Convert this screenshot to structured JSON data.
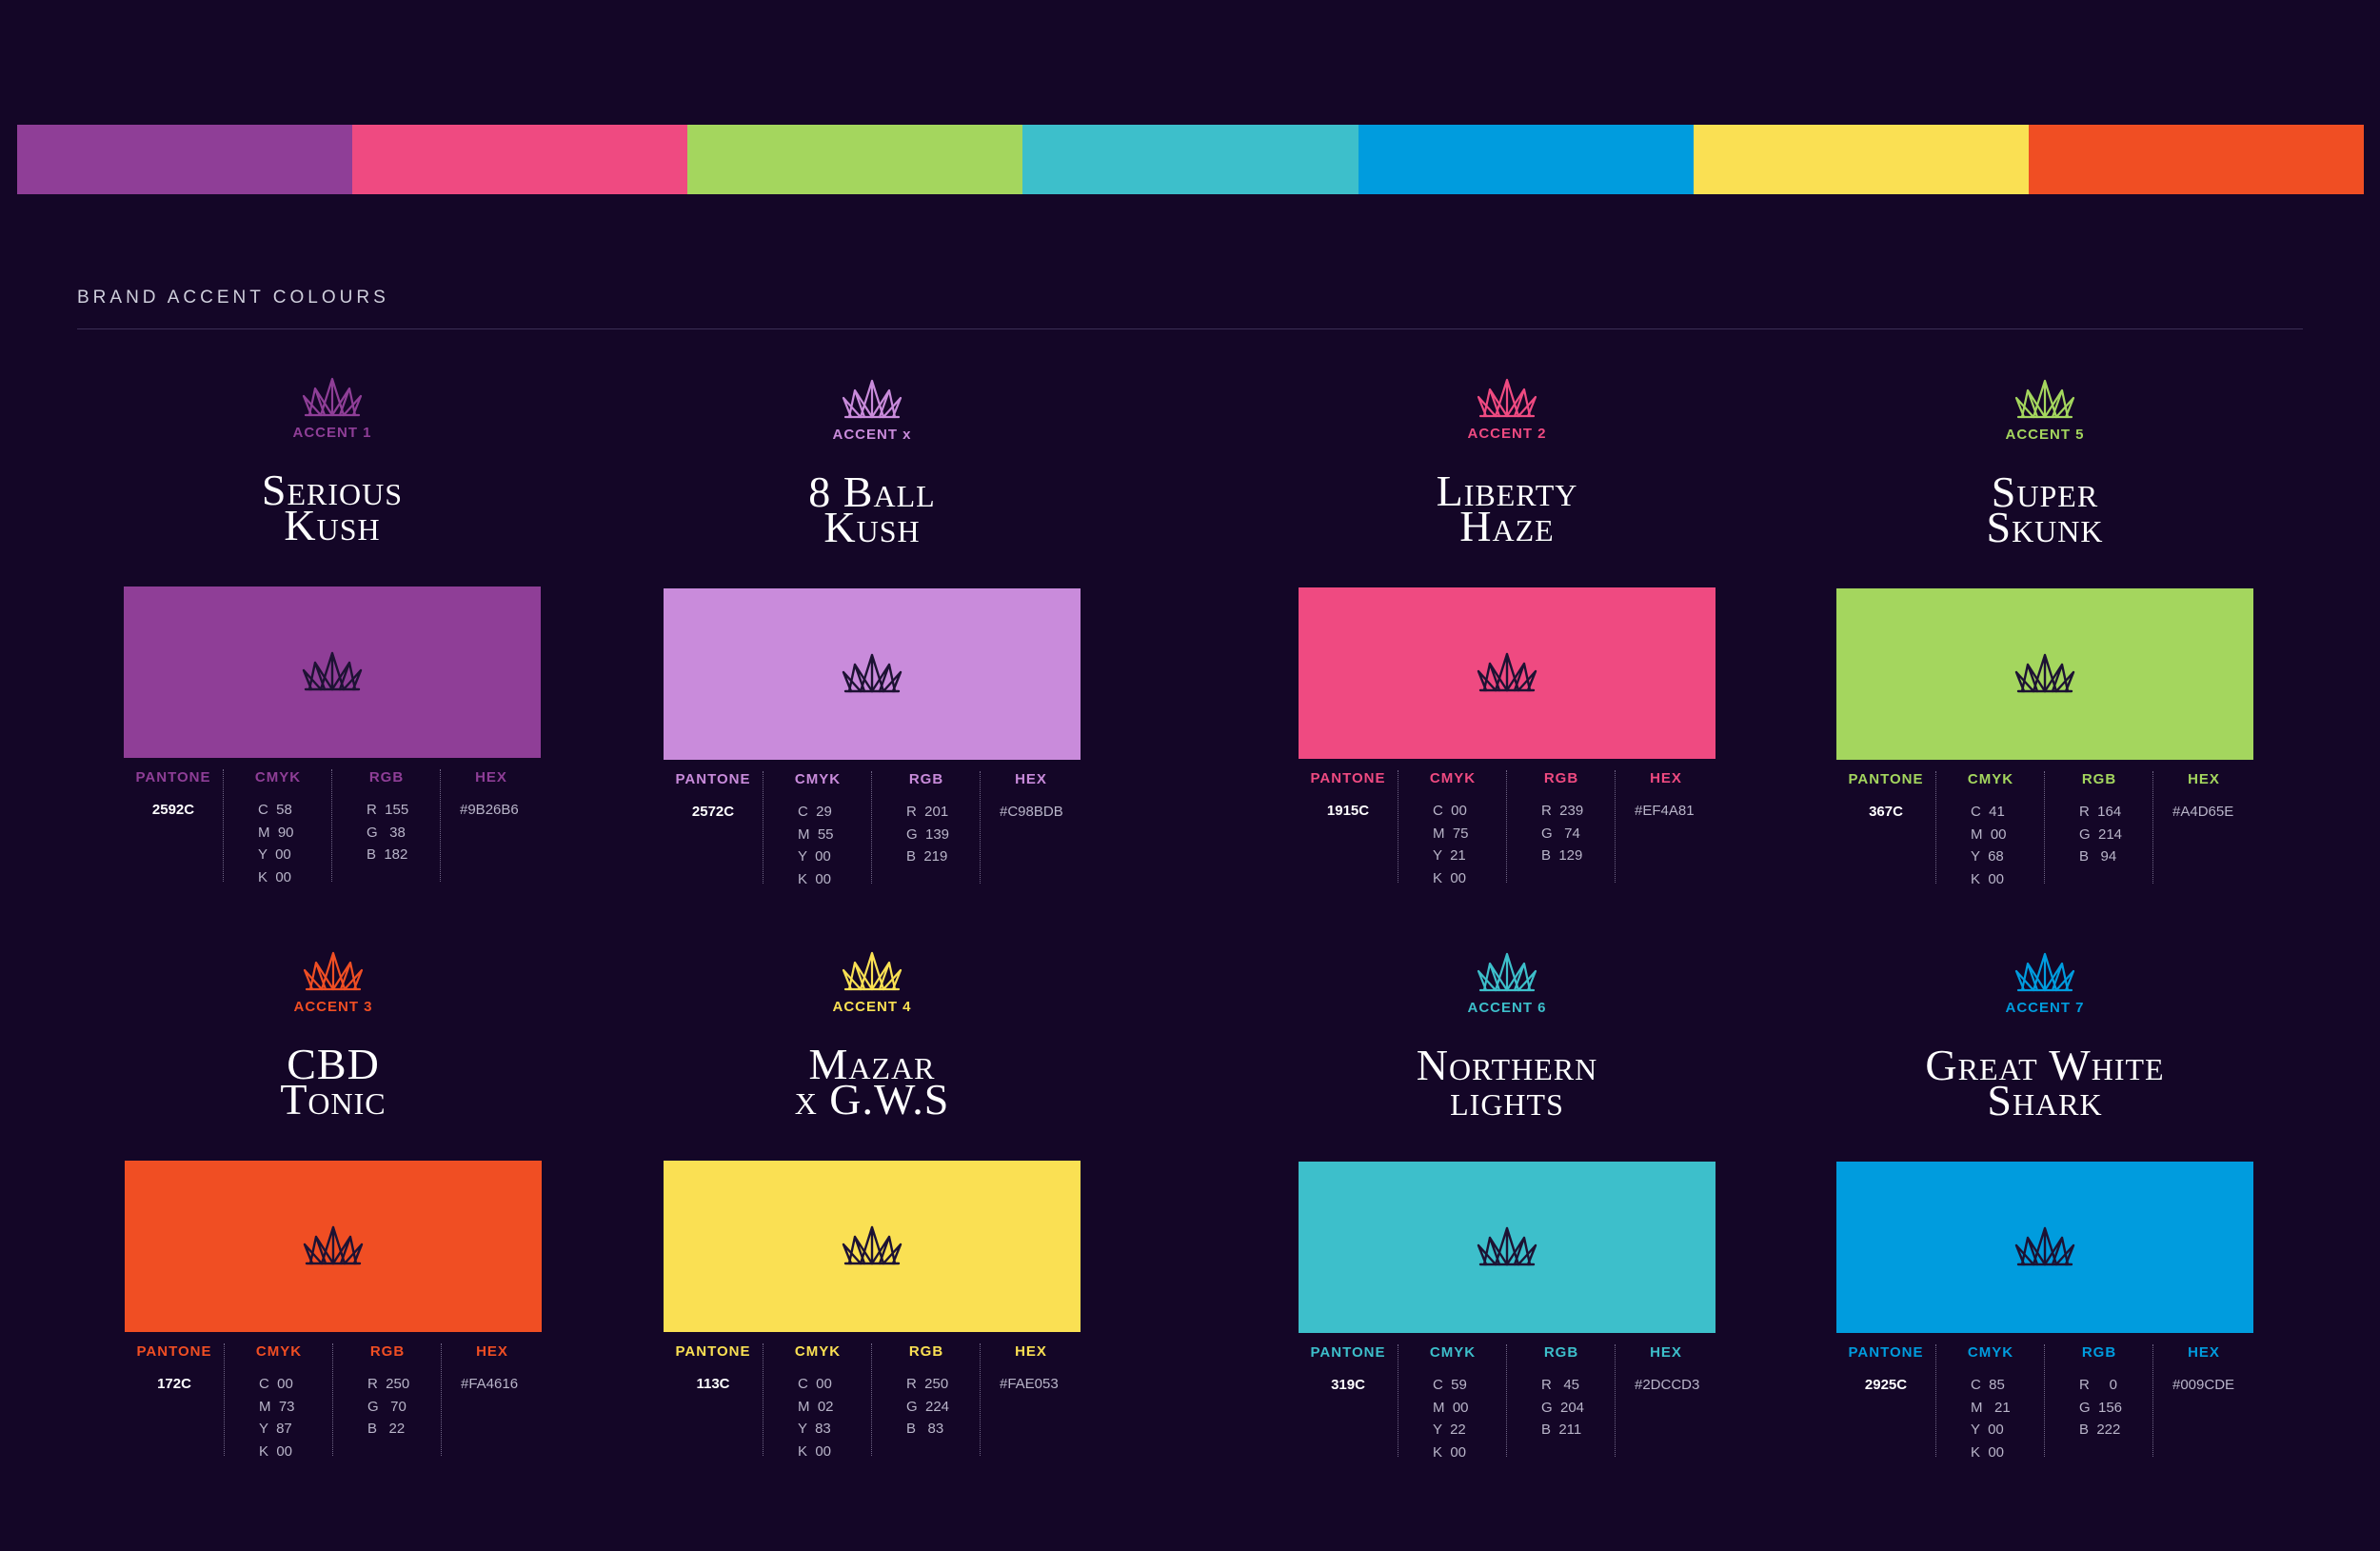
{
  "stripe": [
    "#8F3E97",
    "#EF4A81",
    "#A4D65E",
    "#3DBFCB",
    "#009CDE",
    "#FAE053",
    "#F04E23"
  ],
  "section_title": "BRAND ACCENT COLOURS",
  "accents": [
    {
      "label": "ACCENT 1",
      "name1": "Serious",
      "name2": "Kush",
      "color": "#8F3E97",
      "pantone": "2592C",
      "cmyk": [
        "C  58",
        "M  90",
        "Y  00",
        "K  00"
      ],
      "rgb": [
        "R  155",
        "G   38",
        "B  182"
      ],
      "hex": "#9B26B6"
    },
    {
      "label": "ACCENT x",
      "name1": "8 Ball",
      "name2": "Kush",
      "color": "#C98BDB",
      "pantone": "2572C",
      "cmyk": [
        "C  29",
        "M  55",
        "Y  00",
        "K  00"
      ],
      "rgb": [
        "R  201",
        "G  139",
        "B  219"
      ],
      "hex": "#C98BDB"
    },
    {
      "label": "ACCENT 2",
      "name1": "Liberty",
      "name2": "Haze",
      "color": "#EF4A81",
      "pantone": "1915C",
      "cmyk": [
        "C  00",
        "M  75",
        "Y  21",
        "K  00"
      ],
      "rgb": [
        "R  239",
        "G   74",
        "B  129"
      ],
      "hex": "#EF4A81"
    },
    {
      "label": "ACCENT 5",
      "name1": "Super",
      "name2": "Skunk",
      "color": "#A4D65E",
      "pantone": "367C",
      "cmyk": [
        "C  41",
        "M  00",
        "Y  68",
        "K  00"
      ],
      "rgb": [
        "R  164",
        "G  214",
        "B   94"
      ],
      "hex": "#A4D65E"
    },
    {
      "label": "ACCENT 3",
      "name1": "CBD",
      "name2": "Tonic",
      "color": "#F04E23",
      "pantone": "172C",
      "cmyk": [
        "C  00",
        "M  73",
        "Y  87",
        "K  00"
      ],
      "rgb": [
        "R  250",
        "G   70",
        "B   22"
      ],
      "hex": "#FA4616"
    },
    {
      "label": "ACCENT 4",
      "name1": "Mazar",
      "name2": "x G.W.S",
      "color": "#FAE053",
      "pantone": "113C",
      "cmyk": [
        "C  00",
        "M  02",
        "Y  83",
        "K  00"
      ],
      "rgb": [
        "R  250",
        "G  224",
        "B   83"
      ],
      "hex": "#FAE053"
    },
    {
      "label": "ACCENT 6",
      "name1": "Northern",
      "name2": "lights",
      "color": "#3DBFCB",
      "pantone": "319C",
      "cmyk": [
        "C  59",
        "M  00",
        "Y  22",
        "K  00"
      ],
      "rgb": [
        "R   45",
        "G  204",
        "B  211"
      ],
      "hex": "#2DCCD3"
    },
    {
      "label": "ACCENT 7",
      "name1": "Great White",
      "name2": "Shark",
      "color": "#009CDE",
      "pantone": "2925C",
      "cmyk": [
        "C  85",
        "M   21",
        "Y  00",
        "K  00"
      ],
      "rgb": [
        "R     0",
        "G  156",
        "B  222"
      ],
      "hex": "#009CDE"
    }
  ],
  "headers": {
    "pantone": "PANTONE",
    "cmyk": "CMYK",
    "rgb": "RGB",
    "hex": "HEX"
  },
  "swatch_crown_color": "#1d1233"
}
